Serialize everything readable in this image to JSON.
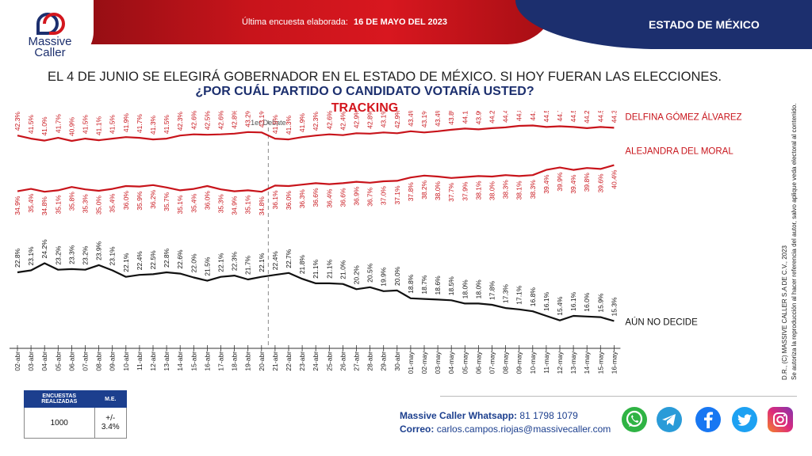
{
  "header": {
    "brand_line1": "Massive",
    "brand_line2": "Caller",
    "survey_note": "Última encuesta elaborada:",
    "survey_date": "16 DE MAYO DEL 2023",
    "state": "ESTADO DE MÉXICO"
  },
  "question": {
    "line1": "EL 4 DE JUNIO SE ELEGIRÁ GOBERNADOR EN EL ESTADO DE MÉXICO. SI HOY FUERAN LAS ELECCIONES.",
    "line2": "¿POR CUÁL PARTIDO O CANDIDATO VOTARÍA USTED?",
    "line3": "TRACKING"
  },
  "chart_data": {
    "type": "line",
    "title": "TRACKING",
    "x": [
      "02-abr",
      "03-abr",
      "04-abr",
      "05-abr",
      "06-abr",
      "07-abr",
      "08-abr",
      "09-abr",
      "10-abr",
      "11-abr",
      "12-abr",
      "13-abr",
      "14-abr",
      "15-abr",
      "16-abr",
      "17-abr",
      "18-abr",
      "19-abr",
      "20-abr",
      "21-abr",
      "22-abr",
      "23-abr",
      "24-abr",
      "25-abr",
      "26-abr",
      "27-abr",
      "28-abr",
      "29-abr",
      "30-abr",
      "01-may",
      "02-may",
      "03-may",
      "04-may",
      "05-may",
      "06-may",
      "07-may",
      "08-may",
      "09-may",
      "10-may",
      "11-may",
      "12-may",
      "13-may",
      "14-may",
      "15-may",
      "16-may"
    ],
    "annotation": "1er Debate",
    "annotation_index": 18.5,
    "series": [
      {
        "name": "DELFINA GÓMEZ ÁLVAREZ",
        "color": "#c8141b",
        "values": [
          42.3,
          41.5,
          41.0,
          41.7,
          40.9,
          41.5,
          41.1,
          41.5,
          41.9,
          41.7,
          41.3,
          41.5,
          42.3,
          42.6,
          42.5,
          42.6,
          42.8,
          43.2,
          43.1,
          41.5,
          41.3,
          41.9,
          42.3,
          42.6,
          42.4,
          42.9,
          42.8,
          43.1,
          42.9,
          43.4,
          43.1,
          43.4,
          43.8,
          44.1,
          43.9,
          44.2,
          44.4,
          44.8,
          44.9,
          44.5,
          44.7,
          44.5,
          44.2,
          44.5,
          44.3
        ]
      },
      {
        "name": "ALEJANDRA DEL MORAL",
        "color": "#c8141b",
        "values": [
          34.9,
          35.4,
          34.8,
          35.1,
          35.8,
          35.3,
          35.0,
          35.4,
          36.0,
          35.9,
          36.2,
          35.7,
          35.1,
          35.4,
          36.0,
          35.3,
          34.9,
          35.1,
          34.8,
          36.1,
          36.0,
          36.3,
          36.6,
          36.4,
          36.6,
          36.9,
          36.7,
          37.0,
          37.1,
          37.8,
          38.2,
          38.0,
          37.7,
          37.9,
          38.1,
          38.0,
          38.3,
          38.1,
          38.3,
          39.4,
          39.9,
          39.4,
          39.8,
          39.6,
          40.4
        ]
      },
      {
        "name": "AÚN NO DECIDE",
        "color": "#111111",
        "values": [
          22.8,
          23.1,
          24.2,
          23.2,
          23.3,
          23.2,
          23.9,
          23.1,
          22.1,
          22.4,
          22.5,
          22.8,
          22.6,
          22.0,
          21.5,
          22.1,
          22.3,
          21.7,
          22.1,
          22.4,
          22.7,
          21.8,
          21.1,
          21.1,
          21.0,
          20.2,
          20.5,
          19.9,
          20.0,
          18.8,
          18.7,
          18.6,
          18.5,
          18.0,
          18.0,
          17.8,
          17.3,
          17.1,
          16.8,
          16.1,
          15.4,
          16.1,
          16.0,
          15.9,
          15.3
        ]
      }
    ]
  },
  "side_text": {
    "line1": "D.R., (C) MASSIVE CALLER S.A DE C.V., 2023",
    "line2": "Se autoriza la reproducción al hacer referencia del autor, salvo aplique veda electoral al contenido."
  },
  "table": {
    "h1": "ENCUESTAS REALIZADAS",
    "h2": "M.E.",
    "v1": "1000",
    "v2": "+/- 3.4%"
  },
  "contact": {
    "whatsapp_label": "Massive Caller Whatsapp:",
    "whatsapp_value": "81 1798 1079",
    "email_label": "Correo:",
    "email_value": "carlos.campos.riojas@massivecaller.com"
  },
  "social": [
    {
      "icon": "whatsapp-icon",
      "color": "#2fb344"
    },
    {
      "icon": "telegram-icon",
      "color": "#2a9bd8"
    },
    {
      "icon": "facebook-icon",
      "color": "#1877f2"
    },
    {
      "icon": "twitter-icon",
      "color": "#1da1f2"
    },
    {
      "icon": "instagram-icon",
      "color": "#c13584"
    }
  ]
}
